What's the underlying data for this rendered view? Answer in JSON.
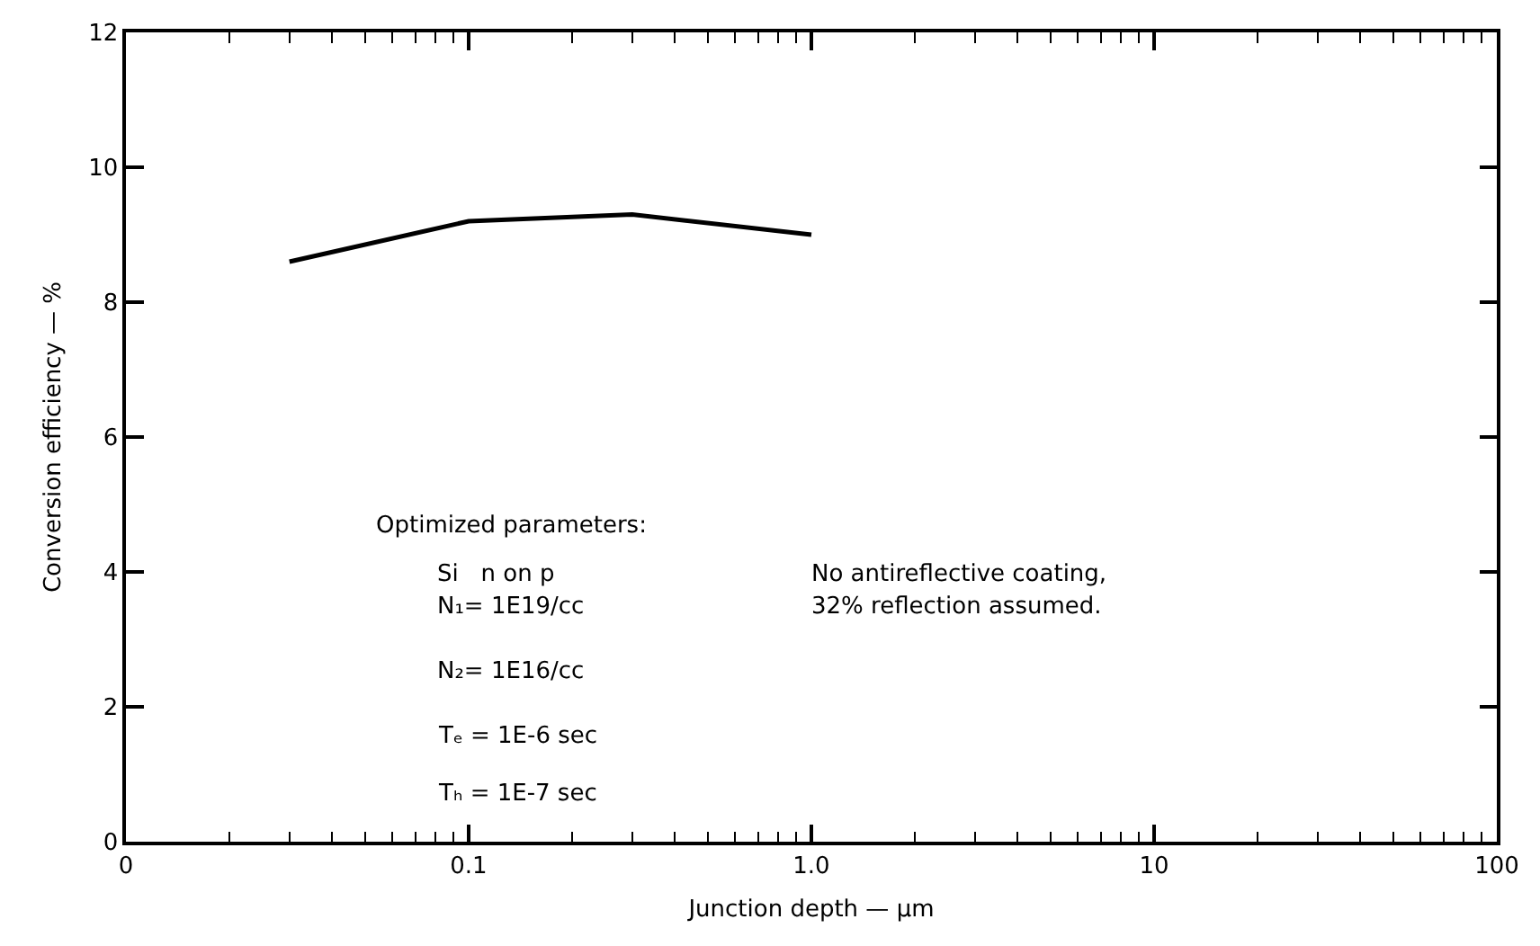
{
  "chart_data": {
    "type": "line",
    "xlabel": "Junction depth — µm",
    "ylabel": "Conversion efficiency — %",
    "x": [
      0.03,
      0.1,
      0.3,
      1.0
    ],
    "series": [
      {
        "color": "#000000",
        "values": [
          8.6,
          9.2,
          9.3,
          9.0
        ]
      }
    ],
    "log": "x",
    "xlim": [
      0.01,
      100
    ],
    "xticks": [
      {
        "value": 0.01,
        "label": "0"
      },
      0.1,
      {
        "value": 1,
        "label": "1.0"
      },
      10,
      100
    ],
    "ylim": [
      0,
      12
    ],
    "yticks": [
      0,
      2,
      4,
      6,
      8,
      10,
      12
    ],
    "grid": false,
    "marker": "none",
    "line_style": "solid",
    "annotations": [
      "Optimized parameters:",
      "Si   n on p",
      "N₁= 1E19/cc",
      "N₂= 1E16/cc",
      "Tₑ = 1E-6 sec",
      "Tₕ = 1E-7 sec",
      "No antireflective coating,",
      "32% reflection assumed."
    ]
  }
}
